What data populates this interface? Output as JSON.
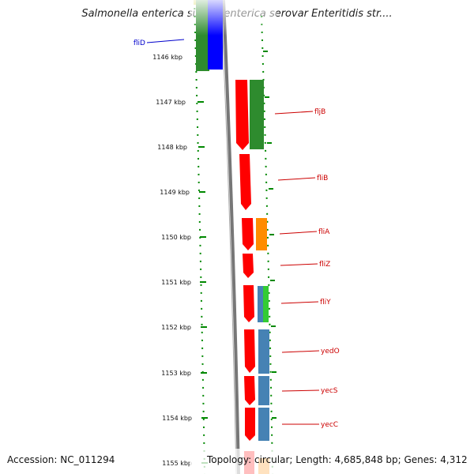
{
  "organism": "Salmonella enterica subsp. enterica serovar Enteritidis str....",
  "accession": "Accession: NC_011294",
  "topology": "Topology: circular; Length: 4,685,848 bp; Genes: 4,312",
  "colors": {
    "forward_label": "#0000cc",
    "reverse_label": "#cc0000",
    "tick": "#008800",
    "backbone": "#777777",
    "red": "#ff0000",
    "green": "#2e8b2e",
    "blue": "#0000ff",
    "orange": "#ff8c00",
    "steelblue": "#4682b4",
    "lime": "#33cc33"
  },
  "scale_labels": [
    "1146 kbp",
    "1147 kbp",
    "1148 kbp",
    "1149 kbp",
    "1150 kbp",
    "1151 kbp",
    "1152 kbp",
    "1153 kbp",
    "1154 kbp",
    "1155 kbp"
  ],
  "gene_labels": [
    {
      "name": "fliD",
      "side": "left"
    },
    {
      "name": "fljB",
      "side": "right"
    },
    {
      "name": "fliB",
      "side": "right"
    },
    {
      "name": "fliA",
      "side": "right"
    },
    {
      "name": "fliZ",
      "side": "right"
    },
    {
      "name": "fliY",
      "side": "right"
    },
    {
      "name": "yedO",
      "side": "right"
    },
    {
      "name": "yecS",
      "side": "right"
    },
    {
      "name": "yecC",
      "side": "right"
    }
  ]
}
